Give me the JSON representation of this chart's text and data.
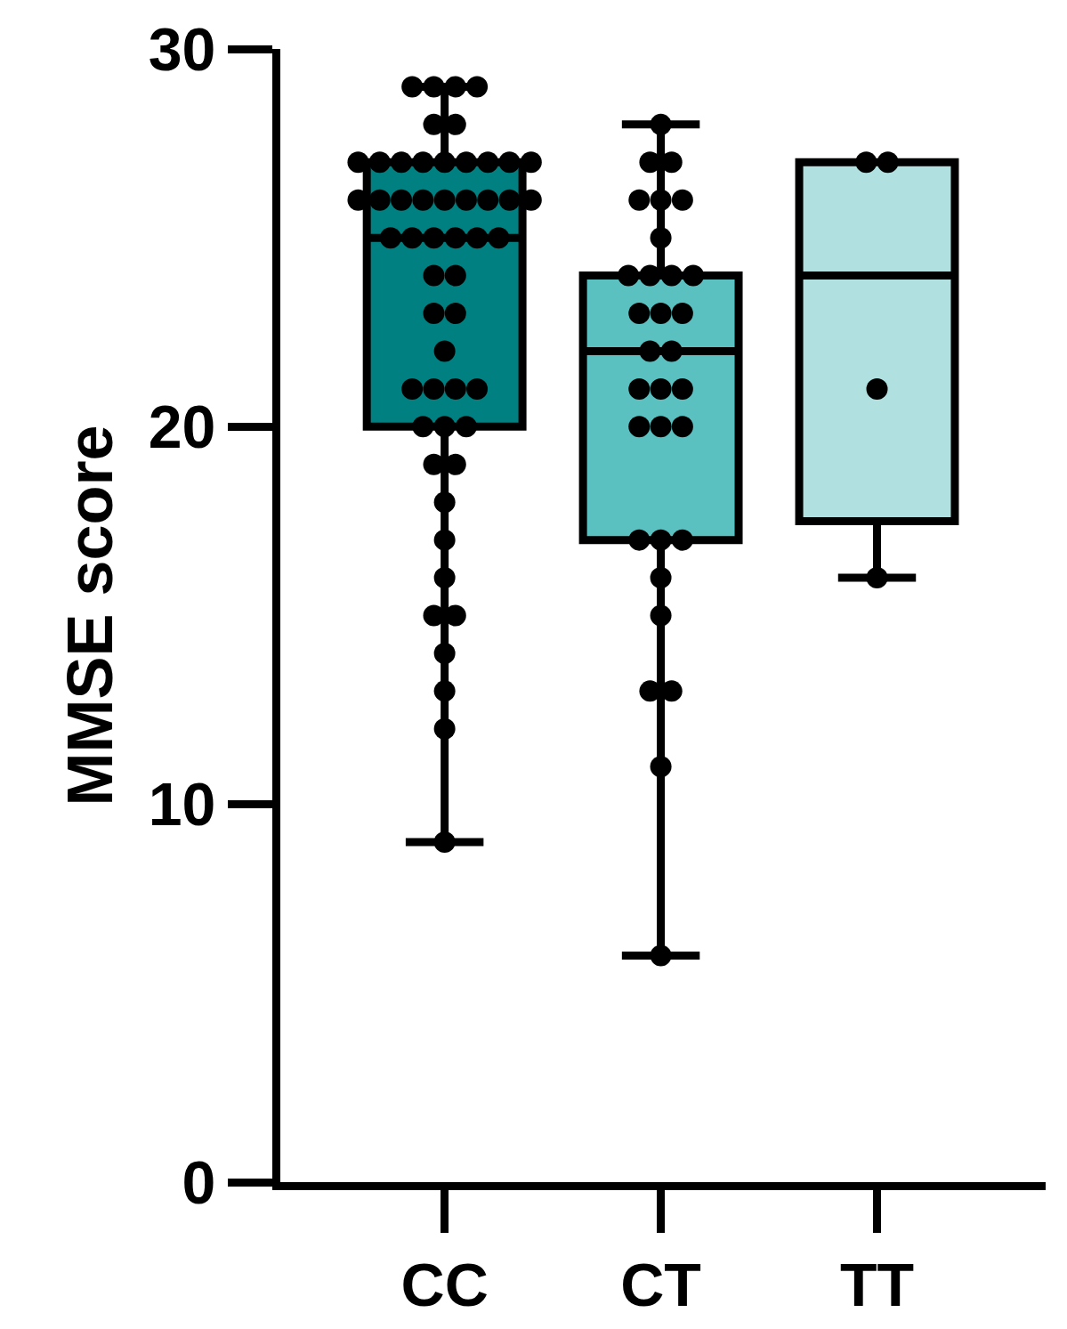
{
  "chart_data": {
    "type": "box",
    "ylabel": "MMSE score",
    "categories": [
      "CC",
      "CT",
      "TT"
    ],
    "colors": [
      "#008080",
      "#5ac0c0",
      "#b0e0e0"
    ],
    "boxes": [
      {
        "low": 9,
        "q1": 20,
        "median": 25,
        "q3": 27,
        "high": 29
      },
      {
        "low": 6,
        "q1": 17,
        "median": 22,
        "q3": 24,
        "high": 28
      },
      {
        "low": 16,
        "q1": 17.5,
        "median": 24,
        "q3": 27,
        "high": 27
      }
    ],
    "ylim": [
      0,
      30
    ],
    "yticks": [
      0,
      10,
      20,
      30
    ],
    "series": [
      {
        "type": "scatter",
        "color": "#000000",
        "marker": "circle",
        "x": [
          "CC",
          "CC",
          "CC",
          "CC",
          "CC",
          "CC",
          "CC",
          "CC",
          "CC",
          "CC",
          "CC",
          "CC",
          "CC",
          "CC",
          "CC",
          "CC",
          "CC",
          "CC",
          "CC",
          "CC",
          "CC",
          "CC",
          "CC",
          "CC",
          "CC",
          "CC",
          "CC",
          "CC",
          "CC",
          "CC",
          "CC",
          "CC",
          "CC",
          "CC",
          "CC",
          "CC",
          "CC",
          "CC",
          "CC",
          "CC",
          "CC",
          "CC",
          "CC",
          "CC",
          "CC",
          "CC",
          "CC",
          "CC",
          "CC",
          "CC",
          "CC",
          "CC",
          "CC"
        ],
        "values": [
          29,
          29,
          29,
          29,
          28,
          28,
          27,
          27,
          27,
          27,
          27,
          27,
          27,
          27,
          27,
          26,
          26,
          26,
          26,
          26,
          26,
          26,
          26,
          26,
          25,
          25,
          25,
          25,
          25,
          25,
          24,
          24,
          23,
          23,
          22,
          21,
          21,
          21,
          21,
          20,
          20,
          19,
          19,
          18,
          17,
          16,
          15,
          15,
          14,
          13,
          12,
          9,
          20
        ]
      },
      {
        "type": "scatter",
        "color": "#000000",
        "marker": "circle",
        "x": [
          "CT",
          "CT",
          "CT",
          "CT",
          "CT",
          "CT",
          "CT",
          "CT",
          "CT",
          "CT",
          "CT",
          "CT",
          "CT",
          "CT",
          "CT",
          "CT",
          "CT",
          "CT",
          "CT",
          "CT",
          "CT",
          "CT",
          "CT",
          "CT",
          "CT",
          "CT",
          "CT",
          "CT",
          "CT",
          "CT"
        ],
        "values": [
          28,
          27,
          27,
          26,
          26,
          26,
          25,
          24,
          24,
          24,
          24,
          23,
          23,
          23,
          22,
          22,
          21,
          21,
          21,
          20,
          20,
          20,
          17,
          17,
          17,
          16,
          15,
          13,
          13,
          11
        ]
      },
      {
        "type": "scatter",
        "color": "#000000",
        "marker": "circle",
        "x": [
          "TT",
          "TT",
          "TT",
          "TT"
        ],
        "values": [
          27,
          27,
          21,
          16
        ]
      },
      {
        "type": "scatter",
        "color": "#000000",
        "marker": "circle",
        "x": [
          "CT"
        ],
        "values": [
          6
        ]
      }
    ]
  }
}
